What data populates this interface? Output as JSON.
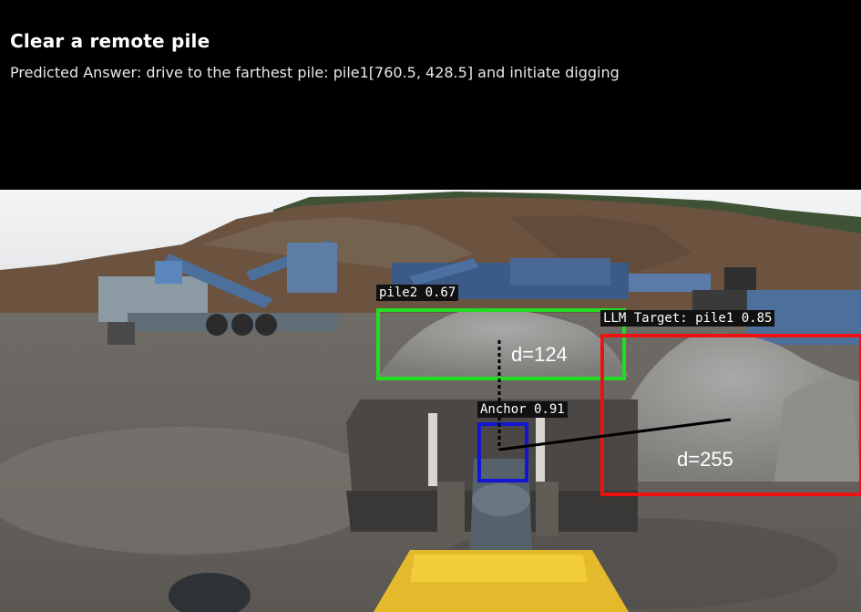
{
  "header": {
    "title": "Clear a remote pile",
    "predicted_answer": "Predicted Answer: drive to the farthest pile: pile1[760.5, 428.5] and initiate digging"
  },
  "detections": {
    "pile2": {
      "label": "pile2 0.67",
      "color": "#22dd22"
    },
    "pile1": {
      "label": "LLM Target: pile1 0.85",
      "color": "#ee1111"
    },
    "anchor": {
      "label": "Anchor 0.91",
      "color": "#1515d5"
    }
  },
  "distances": {
    "to_pile2": "d=124",
    "to_pile1": "d=255"
  }
}
